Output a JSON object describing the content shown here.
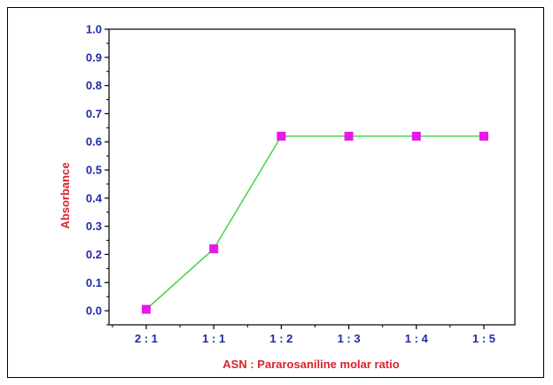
{
  "chart_data": {
    "type": "line",
    "categories": [
      "2 : 1",
      "1 : 1",
      "1 : 2",
      "1 : 3",
      "1 : 4",
      "1 : 5"
    ],
    "series": [
      {
        "values": [
          0.005,
          0.22,
          0.62,
          0.62,
          0.62,
          0.62
        ]
      }
    ],
    "xlabel": "ASN : Pararosaniline molar ratio",
    "ylabel": "Absorbance",
    "ylim": [
      -0.05,
      1.0
    ],
    "yticks": [
      "0.0",
      "0.1",
      "0.2",
      "0.3",
      "0.4",
      "0.5",
      "0.6",
      "0.7",
      "0.8",
      "0.9",
      "1.0"
    ],
    "grid": false,
    "colors": {
      "line": "#4cd64c",
      "marker": "#e619e6",
      "tick_text": "#1f2aa8",
      "axis_title": "#d9232a"
    }
  }
}
